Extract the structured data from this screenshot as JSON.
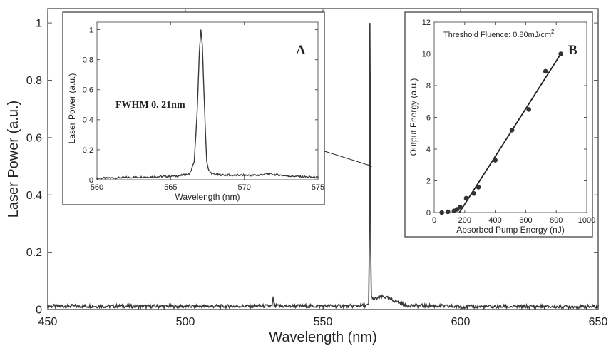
{
  "chart_data": [
    {
      "id": "main",
      "type": "line",
      "xlabel": "Wavelength (nm)",
      "ylabel": "Laser Power (a.u.)",
      "xlim": [
        450,
        650
      ],
      "ylim": [
        0,
        1.05
      ],
      "xticks": [
        450,
        500,
        550,
        600,
        650
      ],
      "yticks": [
        0,
        0.2,
        0.4,
        0.6,
        0.8,
        1
      ],
      "yticklabels": [
        "0",
        "0.2",
        "0.4",
        "0.6",
        "0.8",
        "1"
      ],
      "grid": false,
      "series": [
        {
          "x": [
            450,
            500,
            531.5,
            531.9,
            532.3,
            560,
            566.6,
            566.9,
            567.05,
            567.2,
            567.35,
            567.6,
            568,
            572,
            575,
            580,
            600,
            650
          ],
          "y": [
            0.012,
            0.011,
            0.012,
            0.042,
            0.012,
            0.012,
            0.015,
            0.28,
            1.0,
            0.7,
            0.2,
            0.05,
            0.035,
            0.045,
            0.035,
            0.015,
            0.01,
            0.01
          ]
        }
      ]
    },
    {
      "id": "inset_a",
      "type": "line",
      "panel_label": "A",
      "xlabel": "Wavelength (nm)",
      "ylabel": "Laser Power (a.u.)",
      "xlim": [
        560,
        575
      ],
      "ylim": [
        0,
        1.05
      ],
      "xticks": [
        560,
        565,
        570,
        575
      ],
      "yticks": [
        0,
        0.2,
        0.4,
        0.6,
        0.8,
        1
      ],
      "yticklabels": [
        "0",
        "0.2",
        "0.4",
        "0.6",
        "0.8",
        "1"
      ],
      "annotation": "FWHM 0. 21nm",
      "series": [
        {
          "x": [
            560,
            562,
            564,
            565.5,
            566.3,
            566.6,
            566.8,
            566.95,
            567.05,
            567.15,
            567.25,
            567.35,
            567.45,
            567.6,
            567.8,
            568.2,
            569,
            571,
            571.5,
            573,
            575
          ],
          "y": [
            0.01,
            0.015,
            0.02,
            0.025,
            0.04,
            0.12,
            0.45,
            0.85,
            1.0,
            0.9,
            0.62,
            0.35,
            0.12,
            0.06,
            0.04,
            0.035,
            0.03,
            0.03,
            0.04,
            0.025,
            0.015
          ]
        }
      ]
    },
    {
      "id": "inset_b",
      "type": "scatter",
      "panel_label": "B",
      "title": "Threshold Fluence: 0.80mJ/cm",
      "title_superscript": "2",
      "xlabel": "Absorbed Pump Energy (nJ)",
      "ylabel": "Output Energy (a.u.)",
      "xlim": [
        0,
        1000
      ],
      "ylim": [
        0,
        12
      ],
      "xticks": [
        0,
        200,
        400,
        600,
        800,
        1000
      ],
      "yticks": [
        0,
        2,
        4,
        6,
        8,
        10,
        12
      ],
      "points": {
        "x": [
          50,
          90,
          130,
          150,
          170,
          210,
          260,
          290,
          400,
          510,
          620,
          730,
          830
        ],
        "y": [
          0.0,
          0.05,
          0.1,
          0.2,
          0.35,
          0.9,
          1.2,
          1.6,
          3.3,
          5.2,
          6.5,
          8.9,
          10.0
        ]
      },
      "fit_line": {
        "x": [
          165,
          830
        ],
        "y": [
          0,
          10.0
        ]
      }
    }
  ]
}
